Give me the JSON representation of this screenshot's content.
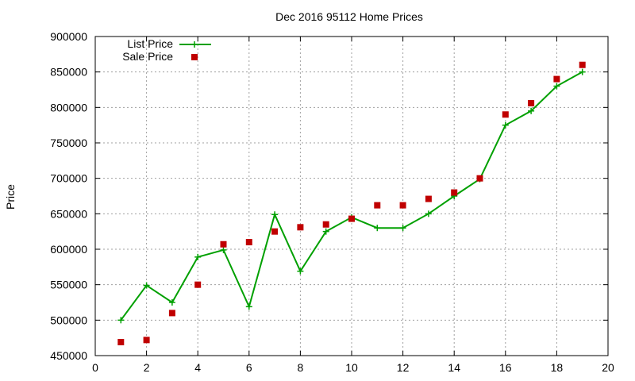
{
  "chart_data": {
    "type": "line",
    "title": "Dec 2016 95112 Home Prices",
    "xlabel": "",
    "ylabel": "Price",
    "xlim": [
      0,
      20
    ],
    "ylim": [
      450000,
      900000
    ],
    "xticks": [
      0,
      2,
      4,
      6,
      8,
      10,
      12,
      14,
      16,
      18,
      20
    ],
    "yticks": [
      450000,
      500000,
      550000,
      600000,
      650000,
      700000,
      750000,
      800000,
      850000,
      900000
    ],
    "grid": true,
    "legend_position": "top-left",
    "series": [
      {
        "name": "List Price",
        "kind": "line",
        "marker": "plus",
        "color": "#00a000",
        "x": [
          1,
          2,
          3,
          4,
          5,
          6,
          7,
          8,
          9,
          10,
          11,
          12,
          13,
          14,
          15,
          16,
          17,
          18,
          19
        ],
        "y": [
          500000,
          549000,
          525000,
          589000,
          599000,
          519000,
          649000,
          569000,
          625000,
          645000,
          630000,
          630000,
          650000,
          675000,
          699000,
          775000,
          795000,
          830000,
          850000
        ]
      },
      {
        "name": "Sale Price",
        "kind": "scatter",
        "marker": "square",
        "color": "#c00000",
        "x": [
          1,
          2,
          3,
          4,
          5,
          6,
          7,
          8,
          9,
          10,
          11,
          12,
          13,
          14,
          15,
          16,
          17,
          18,
          19
        ],
        "y": [
          469000,
          472000,
          510000,
          550000,
          607000,
          610000,
          625000,
          631000,
          635000,
          643000,
          662000,
          662000,
          671000,
          680000,
          700000,
          790000,
          806000,
          840000,
          860000
        ]
      }
    ]
  }
}
